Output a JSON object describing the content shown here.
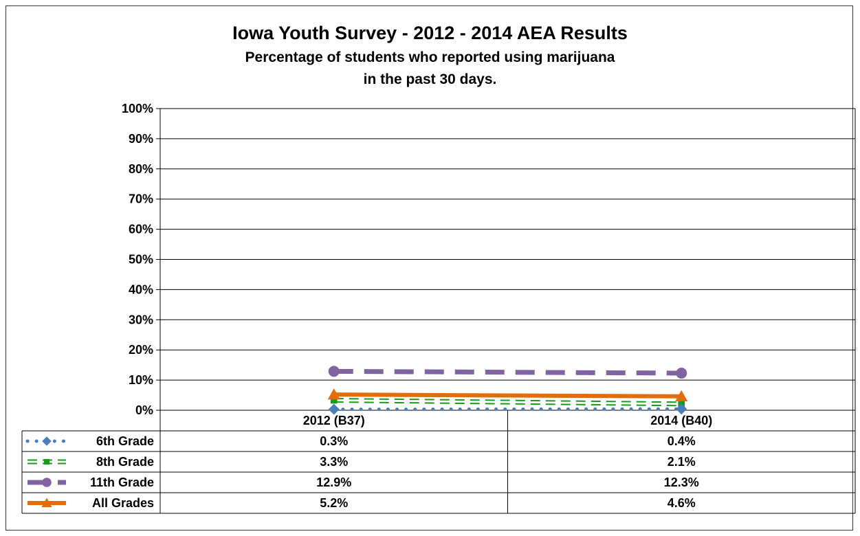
{
  "chart_data": {
    "type": "line",
    "title": "Iowa Youth Survey - 2012 - 2014 AEA Results",
    "subtitle_lines": [
      "Percentage of students who reported using marijuana",
      "in the past 30 days."
    ],
    "categories": [
      "2012 (B37)",
      "2014 (B40)"
    ],
    "ylim": [
      0,
      100
    ],
    "yticks": [
      "0%",
      "10%",
      "20%",
      "30%",
      "40%",
      "50%",
      "60%",
      "70%",
      "80%",
      "90%",
      "100%"
    ],
    "grid": true,
    "legend": "data-table",
    "series": [
      {
        "name": "6th Grade",
        "values": [
          0.3,
          0.4
        ],
        "labels": [
          "0.3%",
          "0.4%"
        ],
        "color": "#4a7ebb",
        "marker": "diamond",
        "line": "dotted"
      },
      {
        "name": "8th Grade",
        "values": [
          3.3,
          2.1
        ],
        "labels": [
          "3.3%",
          "2.1%"
        ],
        "color": "#1a9a1a",
        "marker": "square",
        "line": "double-dash"
      },
      {
        "name": "11th Grade",
        "values": [
          12.9,
          12.3
        ],
        "labels": [
          "12.9%",
          "12.3%"
        ],
        "color": "#8064a2",
        "marker": "circle",
        "line": "dash"
      },
      {
        "name": "All Grades",
        "values": [
          5.2,
          4.6
        ],
        "labels": [
          "5.2%",
          "4.6%"
        ],
        "color": "#e46c0a",
        "marker": "triangle",
        "line": "solid"
      }
    ]
  }
}
